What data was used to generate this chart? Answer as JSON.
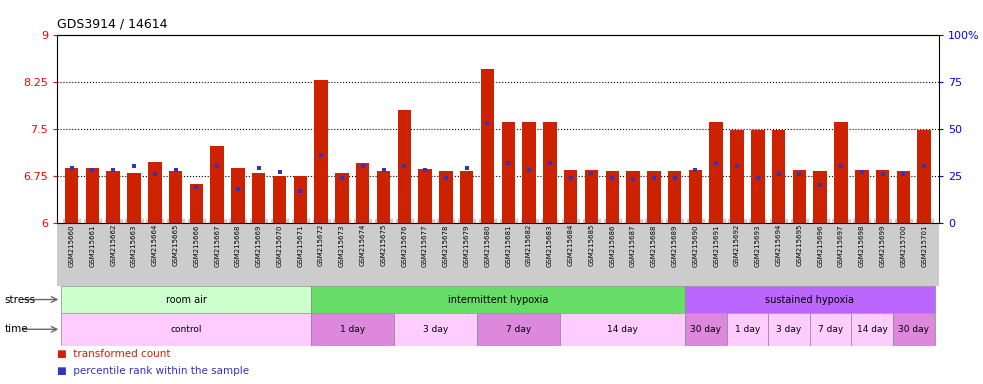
{
  "title": "GDS3914 / 14614",
  "samples": [
    "GSM215660",
    "GSM215661",
    "GSM215662",
    "GSM215663",
    "GSM215664",
    "GSM215665",
    "GSM215666",
    "GSM215667",
    "GSM215668",
    "GSM215669",
    "GSM215670",
    "GSM215671",
    "GSM215672",
    "GSM215673",
    "GSM215674",
    "GSM215675",
    "GSM215676",
    "GSM215677",
    "GSM215678",
    "GSM215679",
    "GSM215680",
    "GSM215681",
    "GSM215682",
    "GSM215683",
    "GSM215684",
    "GSM215685",
    "GSM215686",
    "GSM215687",
    "GSM215688",
    "GSM215689",
    "GSM215690",
    "GSM215691",
    "GSM215692",
    "GSM215693",
    "GSM215694",
    "GSM215695",
    "GSM215696",
    "GSM215697",
    "GSM215698",
    "GSM215699",
    "GSM215700",
    "GSM215701"
  ],
  "bar_values": [
    6.87,
    6.87,
    6.83,
    6.8,
    6.97,
    6.83,
    6.62,
    7.22,
    6.88,
    6.8,
    6.75,
    6.75,
    8.27,
    6.8,
    6.95,
    6.83,
    7.8,
    6.85,
    6.83,
    6.83,
    8.45,
    7.6,
    7.6,
    7.6,
    6.84,
    6.84,
    6.83,
    6.82,
    6.83,
    6.83,
    6.84,
    7.6,
    7.48,
    7.48,
    7.48,
    6.84,
    6.83,
    7.6,
    6.84,
    6.84,
    6.83,
    7.48
  ],
  "percentile_values": [
    29,
    28,
    28,
    30,
    26,
    28,
    19,
    30,
    18,
    29,
    27,
    17,
    36,
    24,
    30,
    28,
    30,
    28,
    24,
    29,
    53,
    32,
    28,
    32,
    24,
    26,
    24,
    23,
    24,
    24,
    28,
    32,
    30,
    24,
    26,
    26,
    20,
    30,
    27,
    26,
    26,
    30
  ],
  "ylim_left": [
    6.0,
    9.0
  ],
  "ylim_right": [
    0,
    100
  ],
  "yticks_left": [
    6,
    6.75,
    7.5,
    8.25,
    9
  ],
  "yticks_left_labels": [
    "6",
    "6.75",
    "7.5",
    "8.25",
    "9"
  ],
  "yticks_right": [
    0,
    25,
    50,
    75,
    100
  ],
  "yticks_right_labels": [
    "0",
    "25",
    "50",
    "75",
    "100%"
  ],
  "bar_color": "#cc2200",
  "dot_color": "#3333bb",
  "background_color": "#ffffff",
  "xtick_bg_color": "#cccccc",
  "stress_groups": [
    {
      "label": "room air",
      "start": 0,
      "end": 12,
      "color": "#ccffcc"
    },
    {
      "label": "intermittent hypoxia",
      "start": 12,
      "end": 30,
      "color": "#66dd66"
    },
    {
      "label": "sustained hypoxia",
      "start": 30,
      "end": 42,
      "color": "#bb66ff"
    }
  ],
  "time_groups": [
    {
      "label": "control",
      "start": 0,
      "end": 12,
      "color": "#ffccff"
    },
    {
      "label": "1 day",
      "start": 12,
      "end": 16,
      "color": "#dd88dd"
    },
    {
      "label": "3 day",
      "start": 16,
      "end": 20,
      "color": "#ffccff"
    },
    {
      "label": "7 day",
      "start": 20,
      "end": 24,
      "color": "#dd88dd"
    },
    {
      "label": "14 day",
      "start": 24,
      "end": 30,
      "color": "#ffccff"
    },
    {
      "label": "30 day",
      "start": 30,
      "end": 32,
      "color": "#dd88dd"
    },
    {
      "label": "1 day",
      "start": 32,
      "end": 34,
      "color": "#ffccff"
    },
    {
      "label": "3 day",
      "start": 34,
      "end": 36,
      "color": "#ffccff"
    },
    {
      "label": "7 day",
      "start": 36,
      "end": 38,
      "color": "#ffccff"
    },
    {
      "label": "14 day",
      "start": 38,
      "end": 40,
      "color": "#ffccff"
    },
    {
      "label": "30 day",
      "start": 40,
      "end": 42,
      "color": "#dd88dd"
    }
  ],
  "grid_values": [
    6.75,
    7.5,
    8.25
  ],
  "bar_width": 0.65,
  "n_samples": 42
}
